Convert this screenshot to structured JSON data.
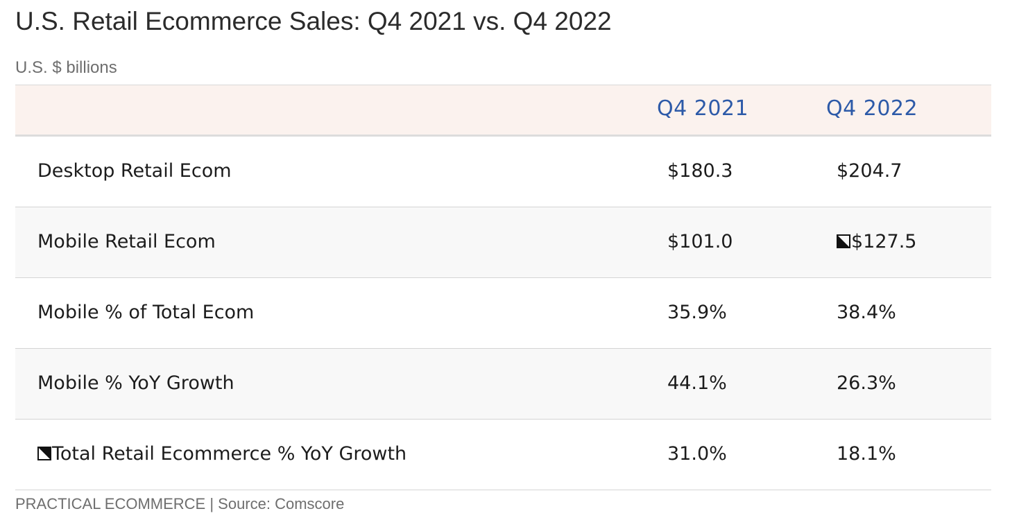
{
  "header": {
    "title": "U.S. Retail Ecommerce Sales: Q4 2021 vs. Q4 2022",
    "subtitle": "U.S. $ billions"
  },
  "chart_data": {
    "type": "table",
    "title": "U.S. Retail Ecommerce Sales: Q4 2021 vs. Q4 2022",
    "subtitle": "U.S. $ billions",
    "columns": [
      "",
      "Q4 2021",
      "Q4 2022"
    ],
    "rows": [
      {
        "label": "Desktop Retail Ecom",
        "values": [
          "$180.3",
          "$204.7"
        ]
      },
      {
        "label": "Mobile Retail Ecom",
        "values": [
          "$101.0",
          "$127.5"
        ]
      },
      {
        "label": "Mobile % of Total Ecom",
        "values": [
          "35.9%",
          "38.4%"
        ]
      },
      {
        "label": "Mobile % YoY Growth",
        "values": [
          "44.1%",
          "26.3%"
        ]
      },
      {
        "label": "Total Retail Ecommerce % YoY Growth",
        "values": [
          "31.0%",
          "18.1%"
        ]
      }
    ],
    "footer": "PRACTICAL ECOMMERCE | Source: Comscore"
  },
  "colors": {
    "header_text": "#2d5aa8",
    "header_background": "#fbf2ee",
    "alt_row_background": "#f8f8f8"
  }
}
